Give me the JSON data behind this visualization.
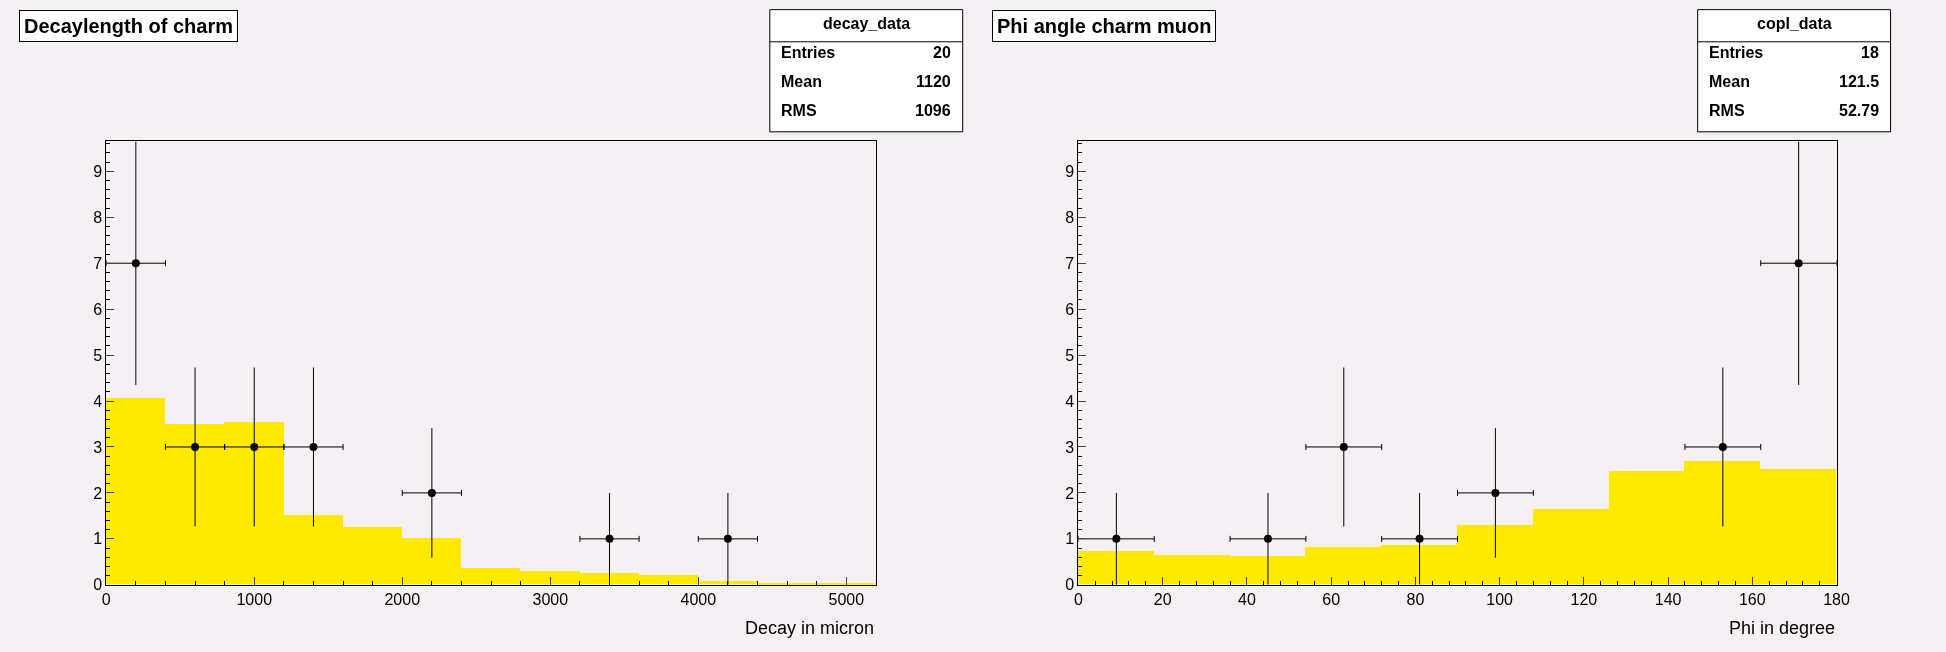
{
  "chart_data": [
    {
      "type": "histogram",
      "title": "Decaylength of charm",
      "xlabel": "Decay in micron",
      "bins": [
        0,
        400,
        800,
        1200,
        1600,
        2000,
        2400,
        2800,
        3200,
        3600,
        4000,
        4400,
        4800,
        5200
      ],
      "series": [
        {
          "color": "#ffea00",
          "values": [
            4.05,
            3.5,
            3.53,
            1.5,
            1.25,
            1.0,
            0.35,
            0.28,
            0.24,
            0.2,
            0.08,
            0.04,
            0.02
          ]
        },
        {
          "type": "scatter",
          "color": "#000000",
          "x": [
            200,
            600,
            1000,
            1400,
            2200,
            3400,
            4200
          ],
          "values": [
            7,
            3,
            3,
            3,
            2,
            1,
            1
          ],
          "errors": [
            2.65,
            1.73,
            1.73,
            1.73,
            1.41,
            1,
            1
          ],
          "xerrors": [
            200,
            200,
            200,
            200,
            200,
            200,
            200
          ]
        }
      ],
      "marker": "circle",
      "xlim": [
        0,
        5200
      ],
      "ylim": [
        0,
        9.65
      ],
      "xticks": [
        0,
        1000,
        2000,
        3000,
        4000,
        5000
      ],
      "yticks": [
        0,
        1,
        2,
        3,
        4,
        5,
        6,
        7,
        8,
        9
      ],
      "grid": false,
      "annotations": [
        "decay_data",
        "Entries 20",
        "Mean 1120",
        "RMS 1096"
      ]
    },
    {
      "type": "histogram",
      "title": "Phi angle charm muon",
      "xlabel": "Phi in degree",
      "bins": [
        0,
        18,
        36,
        54,
        72,
        90,
        108,
        126,
        144,
        162,
        180
      ],
      "series": [
        {
          "color": "#ffea00",
          "values": [
            0.73,
            0.64,
            0.61,
            0.82,
            0.86,
            1.3,
            1.63,
            2.46,
            2.69,
            2.51
          ]
        },
        {
          "type": "scatter",
          "color": "#000000",
          "x": [
            9,
            45,
            63,
            81,
            99,
            153,
            171
          ],
          "values": [
            1,
            1,
            3,
            1,
            2,
            3,
            7
          ],
          "errors": [
            1,
            1,
            1.73,
            1,
            1.41,
            1.73,
            2.65
          ],
          "xerrors": [
            9,
            9,
            9,
            9,
            9,
            9,
            9
          ]
        }
      ],
      "marker": "circle",
      "xlim": [
        0,
        180
      ],
      "ylim": [
        0,
        9.65
      ],
      "xticks": [
        0,
        20,
        40,
        60,
        80,
        100,
        120,
        140,
        160,
        180
      ],
      "yticks": [
        0,
        1,
        2,
        3,
        4,
        5,
        6,
        7,
        8,
        9
      ],
      "grid": false,
      "annotations": [
        "copl_data",
        "Entries 18",
        "Mean 121.5",
        "RMS 52.79"
      ]
    }
  ]
}
